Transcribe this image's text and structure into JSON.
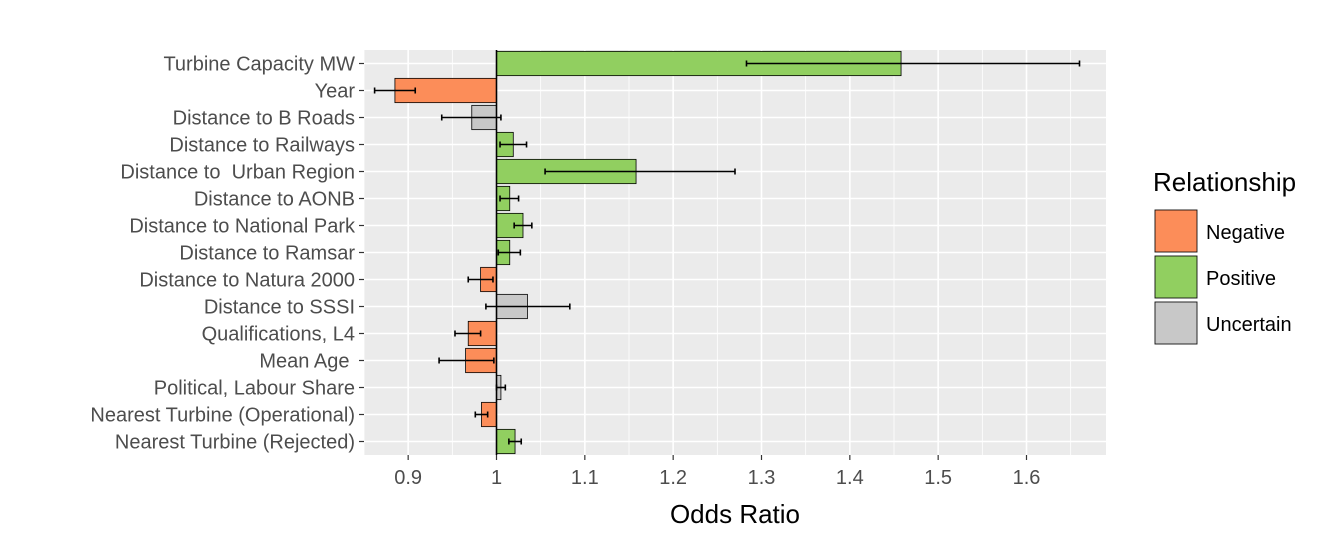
{
  "chart_data": {
    "type": "bar",
    "orientation": "horizontal",
    "xlabel": "Odds Ratio",
    "ylabel": "",
    "xlim": [
      0.85,
      1.69
    ],
    "xticks": [
      0.9,
      1,
      1.1,
      1.2,
      1.3,
      1.4,
      1.5,
      1.6
    ],
    "xtick_labels": [
      "0.9",
      "1",
      "1.1",
      "1.2",
      "1.3",
      "1.4",
      "1.5",
      "1.6"
    ],
    "baseline": 1,
    "grid": true,
    "legend_position": "right",
    "legend": {
      "title": "Relationship",
      "entries": [
        {
          "label": "Negative",
          "color": "#fc8d59"
        },
        {
          "label": "Positive",
          "color": "#91cf60"
        },
        {
          "label": "Uncertain",
          "color": "#c8c8c8"
        }
      ]
    },
    "colors": {
      "Negative": "#fc8d59",
      "Positive": "#91cf60",
      "Uncertain": "#c8c8c8",
      "panel_background": "#ebebeb",
      "gridline": "#ffffff"
    },
    "categories": [
      "Turbine Capacity MW",
      "Year",
      "Distance to B Roads",
      "Distance to Railways",
      "Distance to  Urban Region",
      "Distance to AONB",
      "Distance to National Park",
      "Distance to Ramsar",
      "Distance to Natura 2000",
      "Distance to SSSI",
      "Qualifications, L4",
      "Mean Age ",
      "Political, Labour Share",
      "Nearest Turbine (Operational)",
      "Nearest Turbine (Rejected)"
    ],
    "values": [
      1.458,
      0.885,
      0.972,
      1.019,
      1.158,
      1.015,
      1.03,
      1.015,
      0.982,
      1.035,
      0.968,
      0.965,
      1.005,
      0.983,
      1.021
    ],
    "ci_low": [
      1.283,
      0.862,
      0.938,
      1.004,
      1.055,
      1.004,
      1.02,
      1.002,
      0.968,
      0.988,
      0.953,
      0.935,
      1.0,
      0.976,
      1.014
    ],
    "ci_high": [
      1.66,
      0.908,
      1.005,
      1.034,
      1.27,
      1.025,
      1.04,
      1.027,
      0.996,
      1.083,
      0.982,
      0.997,
      1.01,
      0.99,
      1.028
    ],
    "relationship": [
      "Positive",
      "Negative",
      "Uncertain",
      "Positive",
      "Positive",
      "Positive",
      "Positive",
      "Positive",
      "Negative",
      "Uncertain",
      "Negative",
      "Negative",
      "Uncertain",
      "Negative",
      "Positive"
    ]
  }
}
